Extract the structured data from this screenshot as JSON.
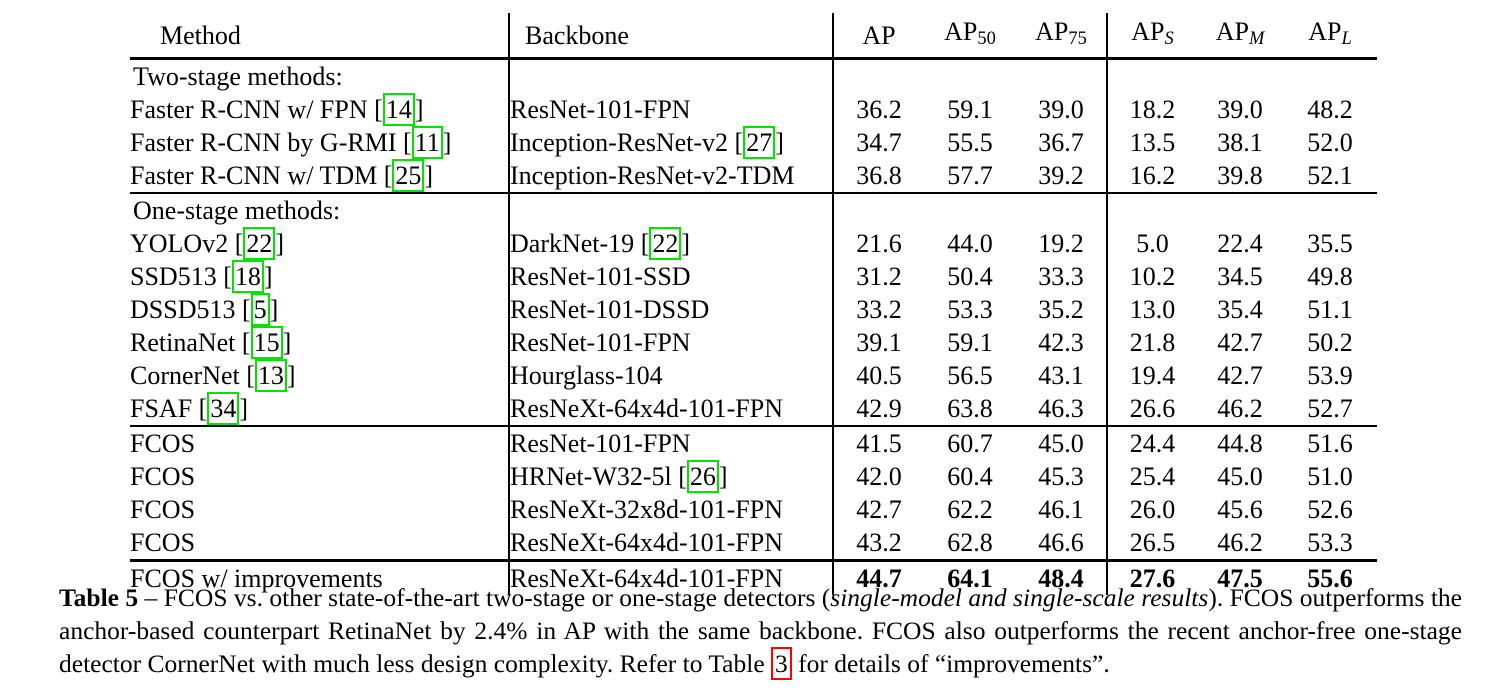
{
  "colors": {
    "background": "#ffffff",
    "text": "#000000",
    "citation_box": "#00e400",
    "reference_box": "#ff0000"
  },
  "table": {
    "cite_open": " [",
    "cite_close": "]",
    "columns": [
      {
        "label": "Method"
      },
      {
        "label": "Backbone"
      },
      {
        "base": "AP",
        "sub": ""
      },
      {
        "base": "AP",
        "sub": "50"
      },
      {
        "base": "AP",
        "sub": "75"
      },
      {
        "base": "AP",
        "sub": "S"
      },
      {
        "base": "AP",
        "sub": "M"
      },
      {
        "base": "AP",
        "sub": "L"
      }
    ],
    "rows": [
      {
        "section": true,
        "method": {
          "text": "Two-stage methods:"
        },
        "backbone": {
          "text": ""
        },
        "vals": [
          "",
          "",
          "",
          "",
          "",
          ""
        ]
      },
      {
        "method": {
          "text": "Faster R-CNN w/ FPN",
          "cite": "14"
        },
        "backbone": {
          "text": "ResNet-101-FPN"
        },
        "vals": [
          "36.2",
          "59.1",
          "39.0",
          "18.2",
          "39.0",
          "48.2"
        ]
      },
      {
        "method": {
          "text": "Faster R-CNN by G-RMI",
          "cite": "11"
        },
        "backbone": {
          "text": "Inception-ResNet-v2",
          "cite": "27"
        },
        "vals": [
          "34.7",
          "55.5",
          "36.7",
          "13.5",
          "38.1",
          "52.0"
        ]
      },
      {
        "method": {
          "text": "Faster R-CNN w/ TDM",
          "cite": "25"
        },
        "backbone": {
          "text": "Inception-ResNet-v2-TDM"
        },
        "vals": [
          "36.8",
          "57.7",
          "39.2",
          "16.2",
          "39.8",
          "52.1"
        ]
      },
      {
        "section": true,
        "rule": "thin",
        "method": {
          "text": "One-stage methods:"
        },
        "backbone": {
          "text": ""
        },
        "vals": [
          "",
          "",
          "",
          "",
          "",
          ""
        ]
      },
      {
        "method": {
          "text": "YOLOv2",
          "cite": "22"
        },
        "backbone": {
          "text": "DarkNet-19",
          "cite": "22"
        },
        "vals": [
          "21.6",
          "44.0",
          "19.2",
          "5.0",
          "22.4",
          "35.5"
        ]
      },
      {
        "method": {
          "text": "SSD513",
          "cite": "18"
        },
        "backbone": {
          "text": "ResNet-101-SSD"
        },
        "vals": [
          "31.2",
          "50.4",
          "33.3",
          "10.2",
          "34.5",
          "49.8"
        ]
      },
      {
        "method": {
          "text": "DSSD513",
          "cite": "5"
        },
        "backbone": {
          "text": "ResNet-101-DSSD"
        },
        "vals": [
          "33.2",
          "53.3",
          "35.2",
          "13.0",
          "35.4",
          "51.1"
        ]
      },
      {
        "method": {
          "text": "RetinaNet",
          "cite": "15"
        },
        "backbone": {
          "text": "ResNet-101-FPN"
        },
        "vals": [
          "39.1",
          "59.1",
          "42.3",
          "21.8",
          "42.7",
          "50.2"
        ]
      },
      {
        "method": {
          "text": "CornerNet",
          "cite": "13"
        },
        "backbone": {
          "text": "Hourglass-104"
        },
        "vals": [
          "40.5",
          "56.5",
          "43.1",
          "19.4",
          "42.7",
          "53.9"
        ]
      },
      {
        "method": {
          "text": "FSAF",
          "cite": "34"
        },
        "backbone": {
          "text": "ResNeXt-64x4d-101-FPN"
        },
        "vals": [
          "42.9",
          "63.8",
          "46.3",
          "26.6",
          "46.2",
          "52.7"
        ]
      },
      {
        "rule": "thin",
        "method": {
          "text": "FCOS"
        },
        "backbone": {
          "text": "ResNet-101-FPN"
        },
        "vals": [
          "41.5",
          "60.7",
          "45.0",
          "24.4",
          "44.8",
          "51.6"
        ]
      },
      {
        "method": {
          "text": "FCOS"
        },
        "backbone": {
          "text": "HRNet-W32-5l",
          "cite": "26"
        },
        "vals": [
          "42.0",
          "60.4",
          "45.3",
          "25.4",
          "45.0",
          "51.0"
        ]
      },
      {
        "method": {
          "text": "FCOS"
        },
        "backbone": {
          "text": "ResNeXt-32x8d-101-FPN"
        },
        "vals": [
          "42.7",
          "62.2",
          "46.1",
          "26.0",
          "45.6",
          "52.6"
        ]
      },
      {
        "method": {
          "text": "FCOS"
        },
        "backbone": {
          "text": "ResNeXt-64x4d-101-FPN"
        },
        "vals": [
          "43.2",
          "62.8",
          "46.6",
          "26.5",
          "46.2",
          "53.3"
        ]
      },
      {
        "rule": "thick",
        "bold": true,
        "method": {
          "text": "FCOS w/ improvements"
        },
        "backbone": {
          "text": "ResNeXt-64x4d-101-FPN"
        },
        "vals": [
          "44.7",
          "64.1",
          "48.4",
          "27.6",
          "47.5",
          "55.6"
        ]
      }
    ]
  },
  "caption": {
    "label": "Table 5",
    "dash": " – ",
    "part1": "FCOS vs. other state-of-the-art two-stage or one-stage detectors (",
    "italic_part": "single-model and single-scale results",
    "part2": "). FCOS outperforms the anchor-based counterpart RetinaNet by 2.4% in AP with the same backbone. FCOS also outperforms the recent anchor-free one-stage detector CornerNet with much less design complexity. Refer to Table ",
    "table_ref": "3",
    "part3": " for details of “improvements”."
  }
}
